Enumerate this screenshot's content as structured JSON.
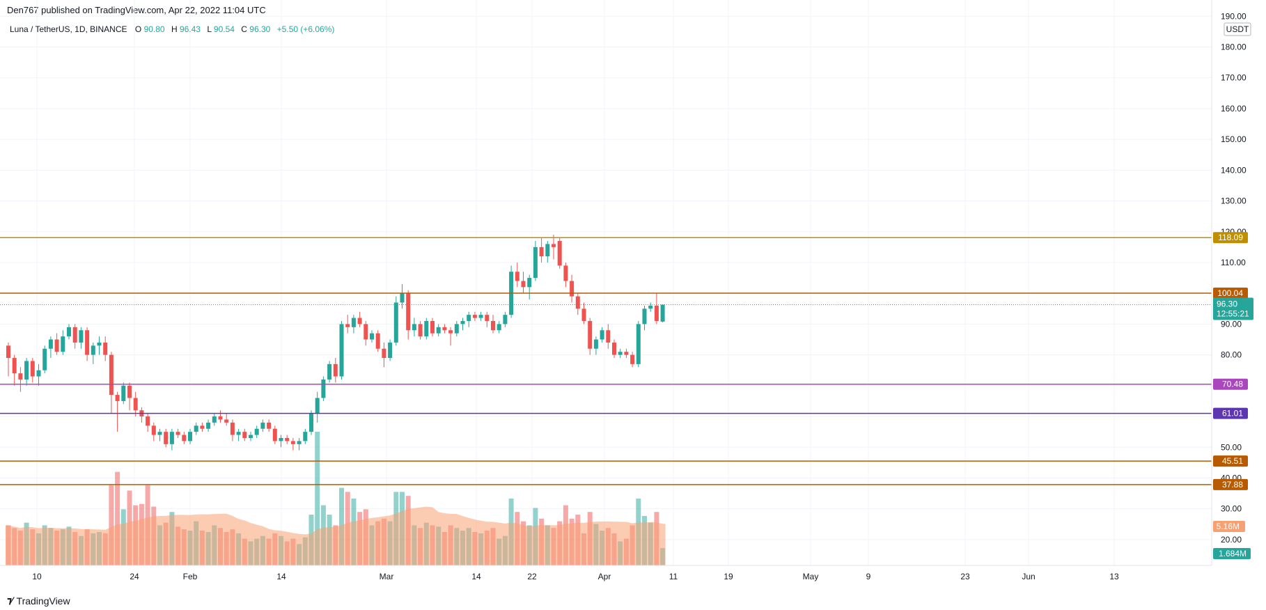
{
  "header": {
    "publisher": "Den767 published on TradingView.com, Apr 22, 2022 11:04 UTC"
  },
  "legend": {
    "symbol": "Luna / TetherUS, 1D, BINANCE",
    "o_label": "O",
    "o_value": "90.80",
    "h_label": "H",
    "h_value": "96.43",
    "l_label": "L",
    "l_value": "90.54",
    "c_label": "C",
    "c_value": "96.30",
    "change": "+5.50 (+6.06%)",
    "value_color": "#26a69a"
  },
  "price_axis": {
    "currency": "USDT",
    "ticks": [
      "190.00",
      "180.00",
      "170.00",
      "160.00",
      "150.00",
      "140.00",
      "130.00",
      "120.00",
      "110.00",
      "90.00",
      "80.00",
      "50.00",
      "40.00",
      "30.00",
      "20.00"
    ],
    "current_price": "96.30",
    "countdown": "12:55:21",
    "current_color": "#26a69a"
  },
  "time_axis": {
    "labels": [
      "10",
      "24",
      "Feb",
      "14",
      "Mar",
      "14",
      "22",
      "Apr",
      "11",
      "19",
      "May",
      "9",
      "23",
      "Jun",
      "13"
    ]
  },
  "footer": {
    "brand": "TradingView"
  },
  "chart_data": {
    "type": "candlestick",
    "timeframe": "1D",
    "y_range": [
      15,
      193
    ],
    "up_color": "#26a69a",
    "down_color": "#ef5350",
    "horizontal_levels": [
      {
        "value": 118.09,
        "label": "118.09",
        "color": "#bf8f00"
      },
      {
        "value": 100.04,
        "label": "100.04",
        "color": "#b85a00"
      },
      {
        "value": 70.48,
        "label": "70.48",
        "color": "#ab47bc"
      },
      {
        "value": 61.01,
        "label": "61.01",
        "color": "#5e35b1"
      },
      {
        "value": 45.51,
        "label": "45.51",
        "color": "#b85a00"
      },
      {
        "value": 37.88,
        "label": "37.88",
        "color": "#b85a00"
      }
    ],
    "volume": {
      "ma_label": "5.16M",
      "ma_color": "#f7a072",
      "last_label": "1.684M",
      "last_color": "#26a69a"
    },
    "candles": [
      {
        "date": "2022-01-04",
        "o": 83,
        "h": 84,
        "l": 73,
        "c": 79,
        "v": 0.3
      },
      {
        "date": "2022-01-05",
        "o": 79,
        "h": 80,
        "l": 70,
        "c": 74,
        "v": 0.28
      },
      {
        "date": "2022-01-06",
        "o": 74,
        "h": 76,
        "l": 68,
        "c": 72,
        "v": 0.26
      },
      {
        "date": "2022-01-07",
        "o": 72,
        "h": 79,
        "l": 70,
        "c": 78,
        "v": 0.32
      },
      {
        "date": "2022-01-08",
        "o": 78,
        "h": 79,
        "l": 71,
        "c": 73,
        "v": 0.27
      },
      {
        "date": "2022-01-09",
        "o": 73,
        "h": 77,
        "l": 70,
        "c": 75,
        "v": 0.24
      },
      {
        "date": "2022-01-10",
        "o": 75,
        "h": 83,
        "l": 74,
        "c": 82,
        "v": 0.3
      },
      {
        "date": "2022-01-11",
        "o": 82,
        "h": 86,
        "l": 79,
        "c": 85,
        "v": 0.28
      },
      {
        "date": "2022-01-12",
        "o": 85,
        "h": 87,
        "l": 80,
        "c": 81,
        "v": 0.26
      },
      {
        "date": "2022-01-13",
        "o": 81,
        "h": 88,
        "l": 80,
        "c": 86,
        "v": 0.27
      },
      {
        "date": "2022-01-14",
        "o": 86,
        "h": 90,
        "l": 85,
        "c": 89,
        "v": 0.29
      },
      {
        "date": "2022-01-15",
        "o": 89,
        "h": 90,
        "l": 82,
        "c": 84,
        "v": 0.25
      },
      {
        "date": "2022-01-16",
        "o": 84,
        "h": 89,
        "l": 82,
        "c": 88,
        "v": 0.22
      },
      {
        "date": "2022-01-17",
        "o": 88,
        "h": 89,
        "l": 78,
        "c": 80,
        "v": 0.27
      },
      {
        "date": "2022-01-18",
        "o": 80,
        "h": 84,
        "l": 77,
        "c": 83,
        "v": 0.24
      },
      {
        "date": "2022-01-19",
        "o": 83,
        "h": 86,
        "l": 80,
        "c": 84,
        "v": 0.25
      },
      {
        "date": "2022-01-20",
        "o": 84,
        "h": 86,
        "l": 78,
        "c": 80,
        "v": 0.24
      },
      {
        "date": "2022-01-21",
        "o": 80,
        "h": 81,
        "l": 61,
        "c": 67,
        "v": 0.6
      },
      {
        "date": "2022-01-22",
        "o": 67,
        "h": 68,
        "l": 55,
        "c": 65,
        "v": 0.7
      },
      {
        "date": "2022-01-23",
        "o": 65,
        "h": 71,
        "l": 64,
        "c": 70,
        "v": 0.42
      },
      {
        "date": "2022-01-24",
        "o": 70,
        "h": 71,
        "l": 62,
        "c": 66,
        "v": 0.56
      },
      {
        "date": "2022-01-25",
        "o": 66,
        "h": 68,
        "l": 60,
        "c": 62,
        "v": 0.45
      },
      {
        "date": "2022-01-26",
        "o": 62,
        "h": 63,
        "l": 58,
        "c": 60,
        "v": 0.46
      },
      {
        "date": "2022-01-27",
        "o": 60,
        "h": 61,
        "l": 55,
        "c": 57,
        "v": 0.6
      },
      {
        "date": "2022-01-28",
        "o": 57,
        "h": 58,
        "l": 52,
        "c": 54,
        "v": 0.44
      },
      {
        "date": "2022-01-29",
        "o": 54,
        "h": 56,
        "l": 52,
        "c": 55,
        "v": 0.3
      },
      {
        "date": "2022-01-30",
        "o": 55,
        "h": 56,
        "l": 50,
        "c": 51,
        "v": 0.32
      },
      {
        "date": "2022-01-31",
        "o": 51,
        "h": 56,
        "l": 49,
        "c": 55,
        "v": 0.4
      },
      {
        "date": "2022-02-01",
        "o": 55,
        "h": 56,
        "l": 53,
        "c": 54,
        "v": 0.29
      },
      {
        "date": "2022-02-02",
        "o": 54,
        "h": 55,
        "l": 51,
        "c": 52,
        "v": 0.27
      },
      {
        "date": "2022-02-03",
        "o": 52,
        "h": 56,
        "l": 51,
        "c": 55,
        "v": 0.26
      },
      {
        "date": "2022-02-04",
        "o": 55,
        "h": 58,
        "l": 54,
        "c": 57,
        "v": 0.33
      },
      {
        "date": "2022-02-05",
        "o": 57,
        "h": 58,
        "l": 55,
        "c": 56,
        "v": 0.26
      },
      {
        "date": "2022-02-06",
        "o": 56,
        "h": 59,
        "l": 55,
        "c": 58,
        "v": 0.25
      },
      {
        "date": "2022-02-07",
        "o": 58,
        "h": 61,
        "l": 57,
        "c": 60,
        "v": 0.3
      },
      {
        "date": "2022-02-08",
        "o": 60,
        "h": 62,
        "l": 58,
        "c": 59,
        "v": 0.28
      },
      {
        "date": "2022-02-09",
        "o": 59,
        "h": 61,
        "l": 57,
        "c": 58,
        "v": 0.25
      },
      {
        "date": "2022-02-10",
        "o": 58,
        "h": 59,
        "l": 52,
        "c": 54,
        "v": 0.27
      },
      {
        "date": "2022-02-11",
        "o": 54,
        "h": 56,
        "l": 52,
        "c": 55,
        "v": 0.24
      },
      {
        "date": "2022-02-12",
        "o": 55,
        "h": 56,
        "l": 52,
        "c": 53,
        "v": 0.2
      },
      {
        "date": "2022-02-13",
        "o": 53,
        "h": 55,
        "l": 52,
        "c": 54,
        "v": 0.18
      },
      {
        "date": "2022-02-14",
        "o": 54,
        "h": 57,
        "l": 53,
        "c": 56,
        "v": 0.2
      },
      {
        "date": "2022-02-15",
        "o": 56,
        "h": 59,
        "l": 55,
        "c": 58,
        "v": 0.22
      },
      {
        "date": "2022-02-16",
        "o": 58,
        "h": 59,
        "l": 55,
        "c": 56,
        "v": 0.2
      },
      {
        "date": "2022-02-17",
        "o": 56,
        "h": 57,
        "l": 51,
        "c": 52,
        "v": 0.24
      },
      {
        "date": "2022-02-18",
        "o": 52,
        "h": 54,
        "l": 50,
        "c": 53,
        "v": 0.22
      },
      {
        "date": "2022-02-19",
        "o": 53,
        "h": 54,
        "l": 51,
        "c": 52,
        "v": 0.18
      },
      {
        "date": "2022-02-20",
        "o": 52,
        "h": 53,
        "l": 49,
        "c": 51,
        "v": 0.2
      },
      {
        "date": "2022-02-21",
        "o": 51,
        "h": 53,
        "l": 49,
        "c": 52,
        "v": 0.16
      },
      {
        "date": "2022-02-22",
        "o": 52,
        "h": 56,
        "l": 51,
        "c": 55,
        "v": 0.21
      },
      {
        "date": "2022-02-23",
        "o": 55,
        "h": 62,
        "l": 54,
        "c": 61,
        "v": 0.38
      },
      {
        "date": "2022-02-24",
        "o": 61,
        "h": 68,
        "l": 58,
        "c": 66,
        "v": 1.0
      },
      {
        "date": "2022-02-25",
        "o": 66,
        "h": 73,
        "l": 65,
        "c": 72,
        "v": 0.45
      },
      {
        "date": "2022-02-26",
        "o": 72,
        "h": 78,
        "l": 71,
        "c": 77,
        "v": 0.38
      },
      {
        "date": "2022-02-27",
        "o": 77,
        "h": 79,
        "l": 71,
        "c": 73,
        "v": 0.3
      },
      {
        "date": "2022-02-28",
        "o": 73,
        "h": 91,
        "l": 72,
        "c": 90,
        "v": 0.58
      },
      {
        "date": "2022-03-01",
        "o": 90,
        "h": 93,
        "l": 87,
        "c": 89,
        "v": 0.55
      },
      {
        "date": "2022-03-02",
        "o": 89,
        "h": 93,
        "l": 87,
        "c": 92,
        "v": 0.5
      },
      {
        "date": "2022-03-03",
        "o": 92,
        "h": 94,
        "l": 89,
        "c": 90,
        "v": 0.4
      },
      {
        "date": "2022-03-04",
        "o": 90,
        "h": 91,
        "l": 83,
        "c": 85,
        "v": 0.42
      },
      {
        "date": "2022-03-05",
        "o": 85,
        "h": 88,
        "l": 84,
        "c": 87,
        "v": 0.3
      },
      {
        "date": "2022-03-06",
        "o": 87,
        "h": 88,
        "l": 81,
        "c": 82,
        "v": 0.33
      },
      {
        "date": "2022-03-07",
        "o": 82,
        "h": 84,
        "l": 76,
        "c": 79,
        "v": 0.35
      },
      {
        "date": "2022-03-08",
        "o": 79,
        "h": 85,
        "l": 78,
        "c": 84,
        "v": 0.33
      },
      {
        "date": "2022-03-09",
        "o": 84,
        "h": 99,
        "l": 83,
        "c": 97,
        "v": 0.55
      },
      {
        "date": "2022-03-10",
        "o": 97,
        "h": 103,
        "l": 95,
        "c": 100,
        "v": 0.55
      },
      {
        "date": "2022-03-11",
        "o": 100,
        "h": 101,
        "l": 85,
        "c": 88,
        "v": 0.52
      },
      {
        "date": "2022-03-12",
        "o": 88,
        "h": 92,
        "l": 86,
        "c": 90,
        "v": 0.3
      },
      {
        "date": "2022-03-13",
        "o": 90,
        "h": 91,
        "l": 85,
        "c": 86,
        "v": 0.28
      },
      {
        "date": "2022-03-14",
        "o": 86,
        "h": 92,
        "l": 85,
        "c": 91,
        "v": 0.32
      },
      {
        "date": "2022-03-15",
        "o": 91,
        "h": 92,
        "l": 86,
        "c": 87,
        "v": 0.3
      },
      {
        "date": "2022-03-16",
        "o": 87,
        "h": 90,
        "l": 86,
        "c": 89,
        "v": 0.29
      },
      {
        "date": "2022-03-17",
        "o": 89,
        "h": 90,
        "l": 87,
        "c": 88,
        "v": 0.25
      },
      {
        "date": "2022-03-18",
        "o": 88,
        "h": 89,
        "l": 83,
        "c": 87,
        "v": 0.3
      },
      {
        "date": "2022-03-19",
        "o": 87,
        "h": 91,
        "l": 86,
        "c": 90,
        "v": 0.28
      },
      {
        "date": "2022-03-20",
        "o": 90,
        "h": 92,
        "l": 88,
        "c": 91,
        "v": 0.26
      },
      {
        "date": "2022-03-21",
        "o": 91,
        "h": 94,
        "l": 89,
        "c": 93,
        "v": 0.28
      },
      {
        "date": "2022-03-22",
        "o": 93,
        "h": 94,
        "l": 91,
        "c": 92,
        "v": 0.25
      },
      {
        "date": "2022-03-23",
        "o": 92,
        "h": 94,
        "l": 91,
        "c": 93,
        "v": 0.24
      },
      {
        "date": "2022-03-24",
        "o": 93,
        "h": 94,
        "l": 89,
        "c": 91,
        "v": 0.26
      },
      {
        "date": "2022-03-25",
        "o": 91,
        "h": 93,
        "l": 87,
        "c": 88,
        "v": 0.28
      },
      {
        "date": "2022-03-26",
        "o": 88,
        "h": 91,
        "l": 87,
        "c": 90,
        "v": 0.2
      },
      {
        "date": "2022-03-27",
        "o": 90,
        "h": 94,
        "l": 89,
        "c": 93,
        "v": 0.22
      },
      {
        "date": "2022-03-28",
        "o": 93,
        "h": 109,
        "l": 92,
        "c": 107,
        "v": 0.5
      },
      {
        "date": "2022-03-29",
        "o": 107,
        "h": 110,
        "l": 102,
        "c": 104,
        "v": 0.4
      },
      {
        "date": "2022-03-30",
        "o": 104,
        "h": 107,
        "l": 100,
        "c": 102,
        "v": 0.33
      },
      {
        "date": "2022-03-31",
        "o": 102,
        "h": 106,
        "l": 98,
        "c": 105,
        "v": 0.3
      },
      {
        "date": "2022-04-01",
        "o": 105,
        "h": 117,
        "l": 104,
        "c": 115,
        "v": 0.43
      },
      {
        "date": "2022-04-02",
        "o": 115,
        "h": 118,
        "l": 110,
        "c": 112,
        "v": 0.35
      },
      {
        "date": "2022-04-03",
        "o": 112,
        "h": 117,
        "l": 110,
        "c": 116,
        "v": 0.3
      },
      {
        "date": "2022-04-04",
        "o": 116,
        "h": 119,
        "l": 111,
        "c": 115,
        "v": 0.28
      },
      {
        "date": "2022-04-05",
        "o": 117,
        "h": 118,
        "l": 108,
        "c": 109,
        "v": 0.33
      },
      {
        "date": "2022-04-06",
        "o": 109,
        "h": 110,
        "l": 102,
        "c": 104,
        "v": 0.45
      },
      {
        "date": "2022-04-07",
        "o": 104,
        "h": 106,
        "l": 97,
        "c": 99,
        "v": 0.35
      },
      {
        "date": "2022-04-08",
        "o": 99,
        "h": 100,
        "l": 93,
        "c": 95,
        "v": 0.38
      },
      {
        "date": "2022-04-09",
        "o": 95,
        "h": 97,
        "l": 90,
        "c": 91,
        "v": 0.24
      },
      {
        "date": "2022-04-10",
        "o": 91,
        "h": 92,
        "l": 80,
        "c": 82,
        "v": 0.4
      },
      {
        "date": "2022-04-11",
        "o": 82,
        "h": 86,
        "l": 80,
        "c": 85,
        "v": 0.31
      },
      {
        "date": "2022-04-12",
        "o": 85,
        "h": 89,
        "l": 84,
        "c": 88,
        "v": 0.26
      },
      {
        "date": "2022-04-13",
        "o": 88,
        "h": 90,
        "l": 82,
        "c": 84,
        "v": 0.28
      },
      {
        "date": "2022-04-14",
        "o": 84,
        "h": 85,
        "l": 79,
        "c": 80,
        "v": 0.24
      },
      {
        "date": "2022-04-15",
        "o": 80,
        "h": 82,
        "l": 79,
        "c": 81,
        "v": 0.18
      },
      {
        "date": "2022-04-16",
        "o": 81,
        "h": 82,
        "l": 79,
        "c": 80,
        "v": 0.2
      },
      {
        "date": "2022-04-17",
        "o": 80,
        "h": 81,
        "l": 76,
        "c": 77,
        "v": 0.3
      },
      {
        "date": "2022-04-18",
        "o": 77,
        "h": 91,
        "l": 76,
        "c": 90,
        "v": 0.5
      },
      {
        "date": "2022-04-19",
        "o": 90,
        "h": 96,
        "l": 88,
        "c": 95,
        "v": 0.37
      },
      {
        "date": "2022-04-20",
        "o": 95,
        "h": 97,
        "l": 94,
        "c": 96,
        "v": 0.32
      },
      {
        "date": "2022-04-21",
        "o": 96,
        "h": 100,
        "l": 90,
        "c": 91,
        "v": 0.4
      },
      {
        "date": "2022-04-22",
        "o": 90.8,
        "h": 96.43,
        "l": 90.54,
        "c": 96.3,
        "v": 0.13
      }
    ]
  }
}
